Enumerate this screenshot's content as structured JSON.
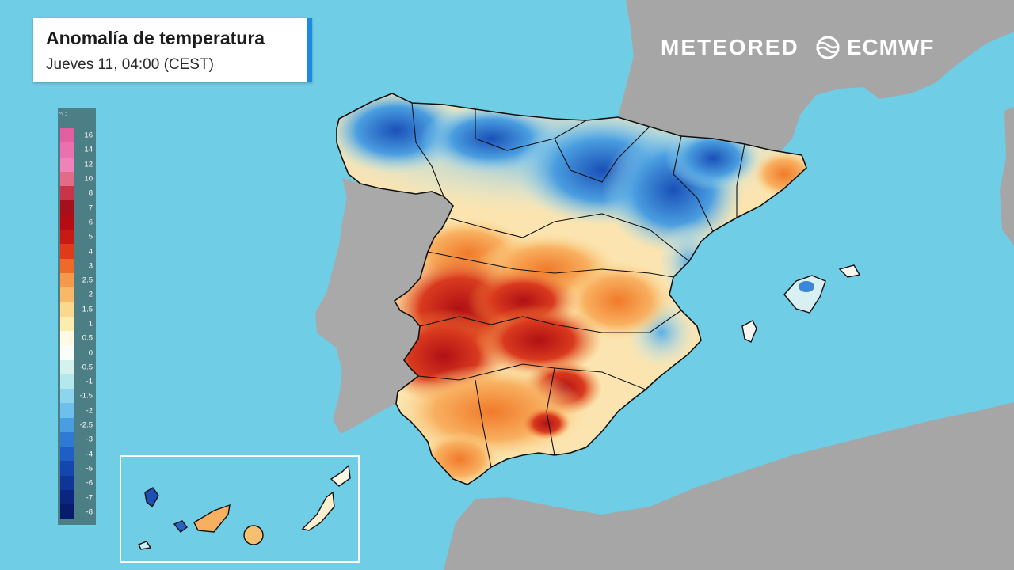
{
  "header": {
    "title": "Anomalía de temperatura",
    "subtitle": "Jueves 11, 04:00 (CEST)"
  },
  "logos": {
    "meteored": "METEORED",
    "ecmwf": "ECMWF"
  },
  "legend": {
    "unit": "°C",
    "labels": [
      "16",
      "14",
      "12",
      "10",
      "8",
      "7",
      "6",
      "5",
      "4",
      "3",
      "2.5",
      "2",
      "1.5",
      "1",
      "0.5",
      "0",
      "-0.5",
      "-1",
      "-1.5",
      "-2",
      "-2.5",
      "-3",
      "-4",
      "-5",
      "-6",
      "-7",
      "-8"
    ],
    "colors": [
      "#e35fa2",
      "#ea71ae",
      "#ef83b9",
      "#e36b88",
      "#c83549",
      "#a6101c",
      "#b40c12",
      "#c81a12",
      "#e03a18",
      "#ef6a28",
      "#f59a4a",
      "#f8b868",
      "#fad88e",
      "#fcecae",
      "#fffbe2",
      "#fbfdf8",
      "#d6f2ee",
      "#b3e8ec",
      "#8fd4ee",
      "#6dc0ec",
      "#4a9de0",
      "#2f7bd3",
      "#1f5ec6",
      "#1447ad",
      "#0e3597",
      "#0a2680",
      "#081c6d"
    ]
  },
  "colors": {
    "sea": "#6fcde6",
    "land": "#a8a8a8",
    "accent": "#1a8be0"
  }
}
